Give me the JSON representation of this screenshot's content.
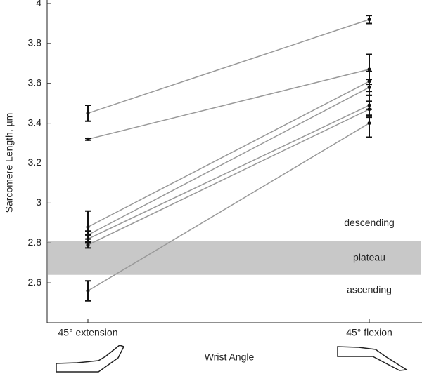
{
  "chart_data": {
    "type": "line",
    "y_label": "Sarcomere Length, µm",
    "x_label": "Wrist Angle",
    "categories": [
      "45° extension",
      "45° flexion"
    ],
    "series": [
      {
        "values": [
          3.45,
          3.92
        ],
        "errors": [
          0.04,
          0.02
        ]
      },
      {
        "values": [
          3.32,
          3.67
        ],
        "errors": [
          0.005,
          0.075
        ]
      },
      {
        "values": [
          2.88,
          3.61
        ],
        "errors": [
          0.08,
          0.05
        ]
      },
      {
        "values": [
          2.84,
          3.58
        ],
        "errors": [
          0.02,
          0.04
        ]
      },
      {
        "values": [
          2.82,
          3.49
        ],
        "errors": [
          0.02,
          0.05
        ]
      },
      {
        "values": [
          2.79,
          3.47
        ],
        "errors": [
          0.015,
          0.04
        ]
      },
      {
        "values": [
          2.56,
          3.4
        ],
        "errors": [
          0.05,
          0.07
        ]
      }
    ],
    "line_color": "#999999",
    "errorbar_color": "#111111",
    "band": [
      2.64,
      2.81
    ],
    "band_color": "#c8c8c8",
    "annotations": [
      "descending",
      "plateau",
      "ascending"
    ],
    "ylim": [
      2.4,
      4
    ],
    "yticks": [
      2.6,
      2.8,
      3,
      3.2,
      3.4,
      3.6,
      3.8,
      4
    ],
    "grid": false
  }
}
